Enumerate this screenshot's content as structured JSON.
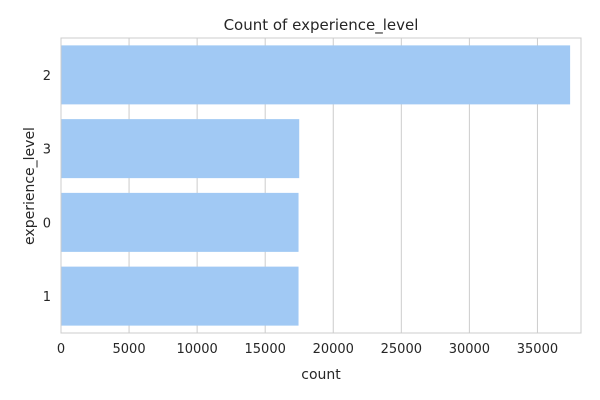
{
  "chart_data": {
    "type": "bar",
    "orientation": "horizontal",
    "title": "Count of experience_level",
    "xlabel": "count",
    "ylabel": "experience_level",
    "categories": [
      "2",
      "3",
      "0",
      "1"
    ],
    "values": [
      37400,
      17500,
      17450,
      17450
    ],
    "xlim": [
      0,
      38200
    ],
    "xticks": [
      0,
      5000,
      10000,
      15000,
      20000,
      25000,
      30000,
      35000
    ],
    "grid": "x-major",
    "bar_color": "#a1c9f4",
    "grid_color": "#cccccc",
    "spine_color": "#cccccc"
  }
}
